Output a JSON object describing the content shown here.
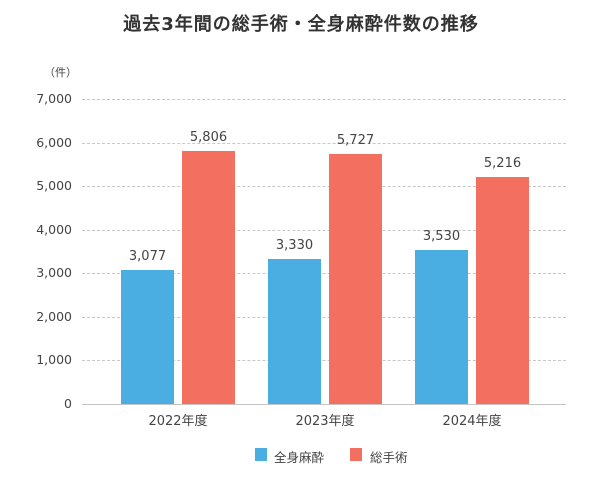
{
  "title": "過去3年間の総手術・全身麻酔件数の推移",
  "colors": {
    "general_anesthesia": "#4BAEE3",
    "total_surgery": "#F36F5F"
  },
  "chart_data": {
    "type": "bar",
    "title": "過去3年間の総手術・全身麻酔件数の推移",
    "xlabel": "",
    "ylabel": "（件）",
    "ylim": [
      0,
      7000
    ],
    "yticks": [
      "0",
      "1,000",
      "2,000",
      "3,000",
      "4,000",
      "5,000",
      "6,000",
      "7,000"
    ],
    "grid": true,
    "legend_position": "bottom",
    "categories": [
      "2022年度",
      "2023年度",
      "2024年度"
    ],
    "series": [
      {
        "name": "全身麻酔",
        "color": "#4BAEE3",
        "values": [
          3077,
          3330,
          3530
        ],
        "labels": [
          "3,077",
          "3,330",
          "3,530"
        ]
      },
      {
        "name": "総手術",
        "color": "#F36F5F",
        "values": [
          5806,
          5727,
          5216
        ],
        "labels": [
          "5,806",
          "5,727",
          "5,216"
        ]
      }
    ]
  },
  "legend": [
    {
      "label": "全身麻酔"
    },
    {
      "label": "総手術"
    }
  ]
}
